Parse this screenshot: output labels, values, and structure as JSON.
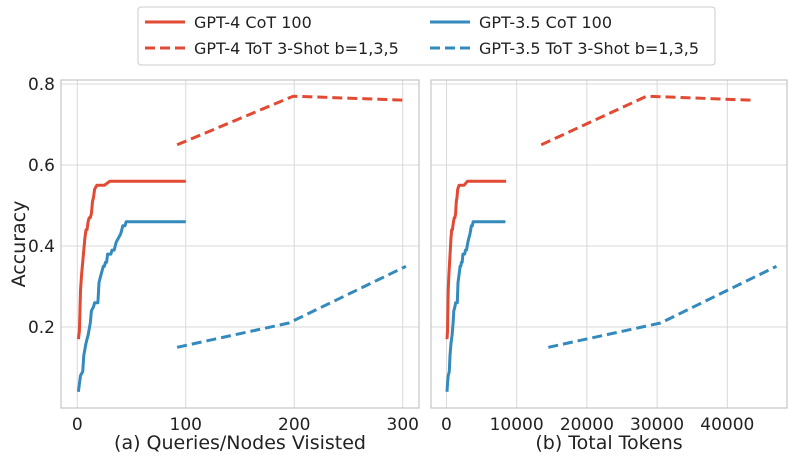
{
  "colors": {
    "gpt4": "#e24a33",
    "gpt35": "#348abd",
    "grid": "#d9d9d9",
    "frame": "#bbbbbb"
  },
  "legend": {
    "placement": "top-center",
    "items": [
      {
        "label": "GPT-4 CoT 100",
        "color": "#e24a33",
        "style": "solid"
      },
      {
        "label": "GPT-4 ToT 3-Shot b=1,3,5",
        "color": "#e24a33",
        "style": "dashed"
      },
      {
        "label": "GPT-3.5 CoT 100",
        "color": "#348abd",
        "style": "solid"
      },
      {
        "label": "GPT-3.5 ToT 3-Shot b=1,3,5",
        "color": "#348abd",
        "style": "dashed"
      }
    ]
  },
  "chart_data": [
    {
      "type": "line",
      "xlabel": "(a) Queries/Nodes Visisted",
      "ylabel": "Accuracy",
      "xlim": [
        -15,
        315
      ],
      "ylim": [
        0.0,
        0.81
      ],
      "xticks": [
        "0",
        "100",
        "200",
        "300"
      ],
      "yticks": [
        "0.2",
        "0.4",
        "0.6",
        "0.8"
      ],
      "grid": true,
      "series": [
        {
          "name": "GPT-4 CoT 100",
          "color": "#e24a33",
          "style": "solid",
          "x": [
            1,
            2,
            3,
            4,
            5,
            6,
            7,
            8,
            9,
            10,
            11,
            12,
            13,
            14,
            15,
            16,
            18,
            20,
            22,
            25,
            30,
            100
          ],
          "y": [
            0.17,
            0.19,
            0.29,
            0.33,
            0.36,
            0.39,
            0.42,
            0.44,
            0.44,
            0.46,
            0.47,
            0.47,
            0.48,
            0.51,
            0.52,
            0.54,
            0.55,
            0.55,
            0.55,
            0.55,
            0.56,
            0.56
          ]
        },
        {
          "name": "GPT-4 ToT 3-Shot b=1,3,5",
          "color": "#e24a33",
          "style": "dashed",
          "x": [
            92,
            199,
            303
          ],
          "y": [
            0.65,
            0.77,
            0.76
          ]
        },
        {
          "name": "GPT-3.5 CoT 100",
          "color": "#348abd",
          "style": "solid",
          "x": [
            1,
            2,
            3,
            5,
            6,
            8,
            10,
            12,
            13,
            15,
            16,
            18,
            19,
            20,
            22,
            24,
            25,
            26,
            27,
            28,
            30,
            31,
            32,
            34,
            35,
            36,
            38,
            40,
            41,
            42,
            44,
            45,
            100
          ],
          "y": [
            0.04,
            0.06,
            0.08,
            0.09,
            0.13,
            0.16,
            0.18,
            0.21,
            0.24,
            0.25,
            0.26,
            0.26,
            0.26,
            0.31,
            0.33,
            0.35,
            0.35,
            0.36,
            0.36,
            0.38,
            0.38,
            0.38,
            0.39,
            0.39,
            0.4,
            0.41,
            0.42,
            0.43,
            0.44,
            0.45,
            0.45,
            0.46,
            0.46
          ]
        },
        {
          "name": "GPT-3.5 ToT 3-Shot b=1,3,5",
          "color": "#348abd",
          "style": "dashed",
          "x": [
            92,
            195,
            303
          ],
          "y": [
            0.15,
            0.21,
            0.35
          ]
        }
      ]
    },
    {
      "type": "line",
      "xlabel": "(b) Total Tokens",
      "ylabel": "",
      "xlim": [
        -2200,
        48500
      ],
      "ylim": [
        0.0,
        0.81
      ],
      "xticks": [
        "0",
        "10000",
        "20000",
        "30000",
        "40000"
      ],
      "yticks": [],
      "grid": true,
      "series": [
        {
          "name": "GPT-4 CoT 100",
          "color": "#e24a33",
          "style": "solid",
          "x": [
            80,
            150,
            250,
            350,
            450,
            550,
            650,
            750,
            850,
            1000,
            1100,
            1200,
            1300,
            1400,
            1500,
            1600,
            1800,
            2000,
            2200,
            2500,
            3000,
            8500
          ],
          "y": [
            0.17,
            0.19,
            0.29,
            0.33,
            0.36,
            0.39,
            0.42,
            0.44,
            0.44,
            0.46,
            0.47,
            0.47,
            0.48,
            0.51,
            0.52,
            0.54,
            0.55,
            0.55,
            0.55,
            0.55,
            0.56,
            0.56
          ]
        },
        {
          "name": "GPT-4 ToT 3-Shot b=1,3,5",
          "color": "#e24a33",
          "style": "dashed",
          "x": [
            13500,
            28500,
            43500
          ],
          "y": [
            0.65,
            0.77,
            0.76
          ]
        },
        {
          "name": "GPT-3.5 CoT 100",
          "color": "#348abd",
          "style": "solid",
          "x": [
            80,
            150,
            250,
            400,
            500,
            650,
            800,
            950,
            1050,
            1200,
            1300,
            1450,
            1550,
            1650,
            1800,
            1950,
            2050,
            2150,
            2250,
            2350,
            2500,
            2600,
            2700,
            2850,
            2950,
            3050,
            3200,
            3350,
            3450,
            3550,
            3700,
            3800,
            8400
          ],
          "y": [
            0.04,
            0.06,
            0.08,
            0.09,
            0.13,
            0.16,
            0.18,
            0.21,
            0.24,
            0.25,
            0.26,
            0.26,
            0.26,
            0.31,
            0.33,
            0.35,
            0.35,
            0.36,
            0.36,
            0.38,
            0.38,
            0.38,
            0.39,
            0.39,
            0.4,
            0.41,
            0.42,
            0.43,
            0.44,
            0.45,
            0.45,
            0.46,
            0.46
          ]
        },
        {
          "name": "GPT-3.5 ToT 3-Shot b=1,3,5",
          "color": "#348abd",
          "style": "dashed",
          "x": [
            14500,
            30500,
            47000
          ],
          "y": [
            0.15,
            0.21,
            0.35
          ]
        }
      ]
    }
  ]
}
